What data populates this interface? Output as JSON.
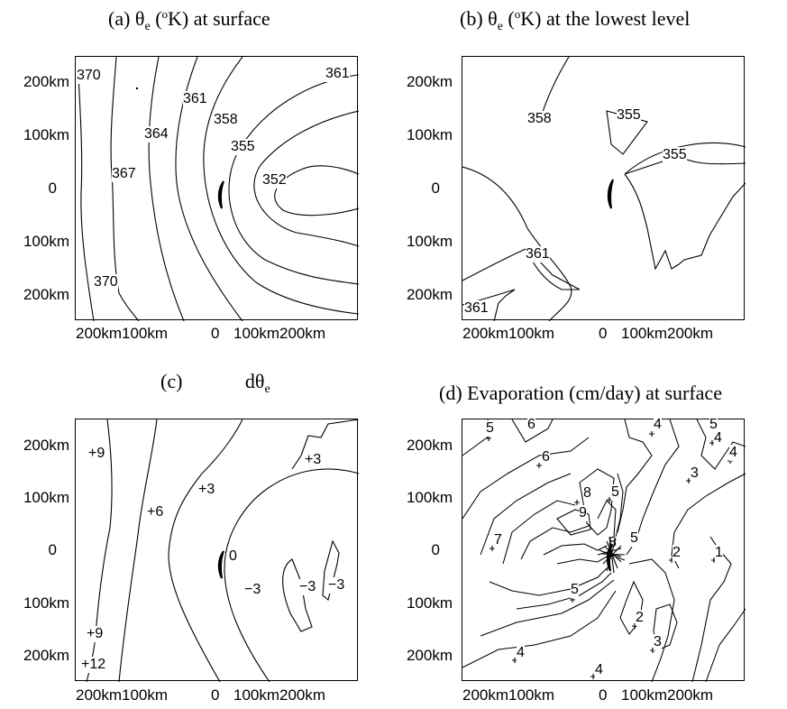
{
  "axes": {
    "y_ticks": [
      "200km",
      "100km",
      "0",
      "100km",
      "200km"
    ],
    "x_ticks": [
      "200km100km",
      "0",
      "100km200km"
    ]
  },
  "panels": [
    {
      "id": "a",
      "title_prefix": "(a) θ",
      "title_sub": "e",
      "title_mid": " (",
      "title_sup": "o",
      "title_suffix": "K) at surface",
      "labels": [
        "370",
        "361",
        "361",
        "358",
        "364",
        "355",
        "367",
        "352",
        "370"
      ]
    },
    {
      "id": "b",
      "title_prefix": "(b)  θ",
      "title_sub": "e",
      "title_mid": " (",
      "title_sup": "o",
      "title_suffix": "K) at the lowest level",
      "labels": [
        "358",
        "355",
        "355",
        "361",
        "361"
      ]
    },
    {
      "id": "c",
      "title_prefix": "(c)",
      "title_main": "dθ",
      "title_sub": "e",
      "labels": [
        "+9",
        "+3",
        "+3",
        "+6",
        "0",
        "−3",
        "−3",
        "−3",
        "+9",
        "+12"
      ]
    },
    {
      "id": "d",
      "title": "(d) Evaporation (cm/day) at surface",
      "labels": [
        "5",
        "6",
        "4",
        "5",
        "4",
        "6",
        "4",
        "3",
        "8",
        "5",
        "9",
        "7",
        "8",
        "5",
        "2",
        "1",
        "5",
        "2",
        "3",
        "4",
        "4"
      ]
    }
  ]
}
